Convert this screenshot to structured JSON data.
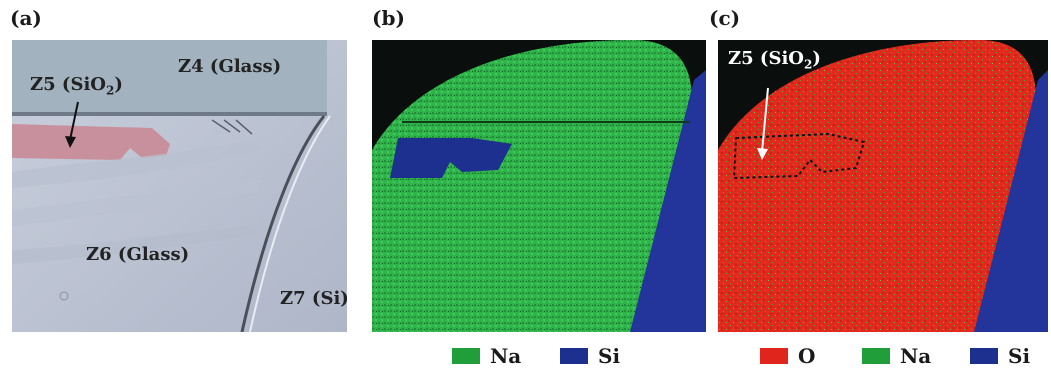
{
  "panels": {
    "a": {
      "label": "(a)",
      "zones": {
        "z4": "Z4 (Glass)",
        "z5_main": "Z5 (SiO",
        "z5_sub": "2",
        "z5_close": ")",
        "z6": "Z6 (Glass)",
        "z7": "Z7 (Si)"
      }
    },
    "b": {
      "label": "(b)",
      "legend": [
        {
          "name": "Na",
          "color": "#1f9e3a"
        },
        {
          "name": "Si",
          "color": "#1d2f8f"
        }
      ]
    },
    "c": {
      "label": "(c)",
      "zone_main": "Z5 (SiO",
      "zone_sub": "2",
      "zone_close": ")",
      "legend": [
        {
          "name": "O",
          "color": "#e0261c"
        },
        {
          "name": "Na",
          "color": "#1f9e3a"
        },
        {
          "name": "Si",
          "color": "#1d2f8f"
        }
      ]
    }
  }
}
